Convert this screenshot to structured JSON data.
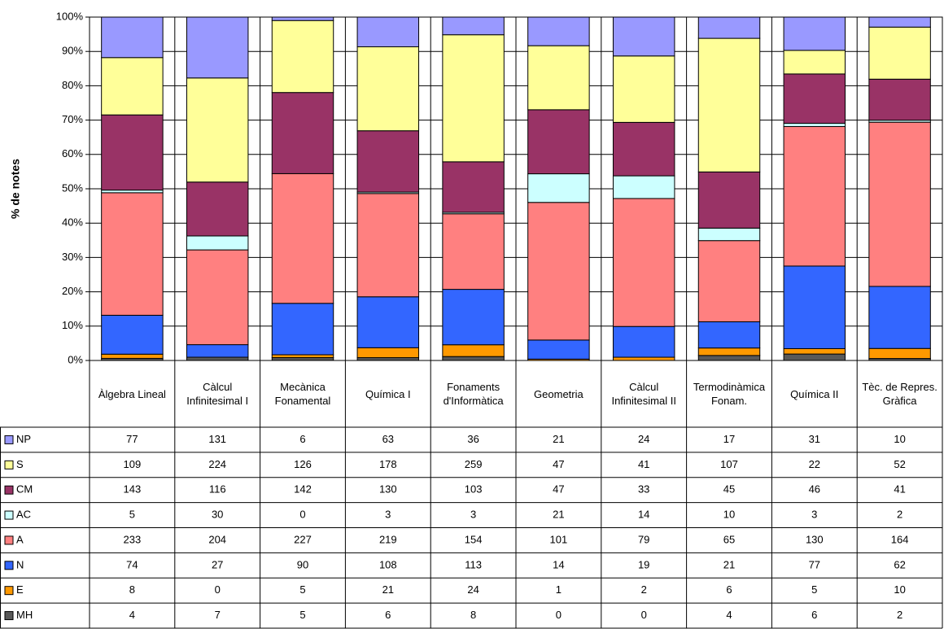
{
  "chart_data": {
    "type": "stacked_percent_bar",
    "y_label": "% de notes",
    "categories": [
      "Àlgebra Lineal",
      "Càlcul Infinitesimal I",
      "Mecànica Fonamental",
      "Química I",
      "Fonaments d'Informàtica",
      "Geometria",
      "Càlcul Infinitesimal II",
      "Termodinàmica Fonam.",
      "Química II",
      "Tèc. de Repres. Gràfica"
    ],
    "series": [
      {
        "name": "NP",
        "color": "#9999ff",
        "values": [
          77,
          131,
          6,
          63,
          36,
          21,
          24,
          17,
          31,
          10
        ]
      },
      {
        "name": "S",
        "color": "#ffff99",
        "values": [
          109,
          224,
          126,
          178,
          259,
          47,
          41,
          107,
          22,
          52
        ]
      },
      {
        "name": "CM",
        "color": "#993366",
        "values": [
          143,
          116,
          142,
          130,
          103,
          47,
          33,
          45,
          46,
          41
        ]
      },
      {
        "name": "AC",
        "color": "#ccffff",
        "values": [
          5,
          30,
          0,
          3,
          3,
          21,
          14,
          10,
          3,
          2
        ]
      },
      {
        "name": "A",
        "color": "#ff8080",
        "values": [
          233,
          204,
          227,
          219,
          154,
          101,
          79,
          65,
          130,
          164
        ]
      },
      {
        "name": "N",
        "color": "#3366ff",
        "values": [
          74,
          27,
          90,
          108,
          113,
          14,
          19,
          21,
          77,
          62
        ]
      },
      {
        "name": "E",
        "color": "#ff9900",
        "values": [
          8,
          0,
          5,
          21,
          24,
          1,
          2,
          6,
          5,
          10
        ]
      },
      {
        "name": "MH",
        "color": "#595959",
        "values": [
          4,
          7,
          5,
          6,
          8,
          0,
          0,
          4,
          6,
          2
        ]
      }
    ],
    "ylim": [
      0,
      100
    ],
    "yticks": [
      {
        "value": 0,
        "label": "0%"
      },
      {
        "value": 10,
        "label": "10%"
      },
      {
        "value": 20,
        "label": "20%"
      },
      {
        "value": 30,
        "label": "30%"
      },
      {
        "value": 40,
        "label": "40%"
      },
      {
        "value": 50,
        "label": "50%"
      },
      {
        "value": 60,
        "label": "60%"
      },
      {
        "value": 70,
        "label": "70%"
      },
      {
        "value": 80,
        "label": "80%"
      },
      {
        "value": 90,
        "label": "90%"
      },
      {
        "value": 100,
        "label": "100%"
      }
    ],
    "grid": true
  }
}
